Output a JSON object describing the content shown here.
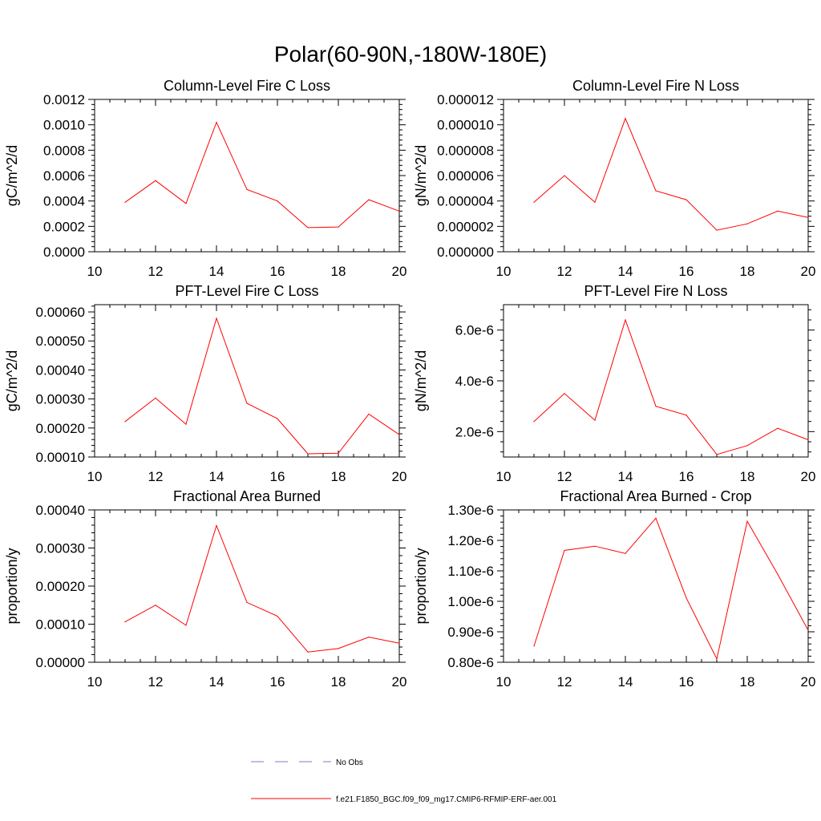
{
  "figure": {
    "title": "Polar(60-90N,-180W-180E)"
  },
  "colors": {
    "series": "#ff0000",
    "obs": "#7b7bc8",
    "axis": "#000000"
  },
  "legend": {
    "obs_label": "No Obs",
    "case_label": "f.e21.F1850_BGC.f09_f09_mg17.CMIP6-RFMIP-ERF-aer.001"
  },
  "chart_data": [
    {
      "type": "line",
      "title": "Column-Level Fire C Loss",
      "xlabel": "",
      "ylabel": "gC/m^2/d",
      "xlim": [
        10,
        20
      ],
      "ylim": [
        0,
        0.0012
      ],
      "x_ticks": [
        10,
        12,
        14,
        16,
        18,
        20
      ],
      "x_tick_labels": [
        "10",
        "12",
        "14",
        "16",
        "18",
        "20"
      ],
      "y_ticks": [
        0,
        0.0002,
        0.0004,
        0.0006,
        0.0008,
        0.001,
        0.0012
      ],
      "y_tick_labels": [
        "0.0000",
        "0.0002",
        "0.0004",
        "0.0006",
        "0.0008",
        "0.0010",
        "0.0012"
      ],
      "series": [
        {
          "name": "f.e21.F1850_BGC.f09_f09_mg17.CMIP6-RFMIP-ERF-aer.001",
          "x": [
            11,
            12,
            13,
            14,
            15,
            16,
            17,
            18,
            19,
            20
          ],
          "values": [
            0.00039,
            0.00056,
            0.00038,
            0.00102,
            0.00049,
            0.0004,
            0.00019,
            0.000195,
            0.00041,
            0.00032
          ]
        }
      ]
    },
    {
      "type": "line",
      "title": "Column-Level Fire N Loss",
      "xlabel": "",
      "ylabel": "gN/m^2/d",
      "xlim": [
        10,
        20
      ],
      "ylim": [
        0,
        1.2e-05
      ],
      "x_ticks": [
        10,
        12,
        14,
        16,
        18,
        20
      ],
      "x_tick_labels": [
        "10",
        "12",
        "14",
        "16",
        "18",
        "20"
      ],
      "y_ticks": [
        0,
        2e-06,
        4e-06,
        6e-06,
        8e-06,
        1e-05,
        1.2e-05
      ],
      "y_tick_labels": [
        "0.000000",
        "0.000002",
        "0.000004",
        "0.000006",
        "0.000008",
        "0.000010",
        "0.000012"
      ],
      "series": [
        {
          "name": "f.e21.F1850_BGC.f09_f09_mg17.CMIP6-RFMIP-ERF-aer.001",
          "x": [
            11,
            12,
            13,
            14,
            15,
            16,
            17,
            18,
            19,
            20
          ],
          "values": [
            3.9e-06,
            6e-06,
            3.9e-06,
            1.05e-05,
            4.8e-06,
            4.1e-06,
            1.7e-06,
            2.2e-06,
            3.2e-06,
            2.7e-06
          ]
        }
      ]
    },
    {
      "type": "line",
      "title": "PFT-Level Fire C Loss",
      "xlabel": "",
      "ylabel": "gC/m^2/d",
      "xlim": [
        10,
        20
      ],
      "ylim": [
        0.0001,
        0.000625
      ],
      "x_ticks": [
        10,
        12,
        14,
        16,
        18,
        20
      ],
      "x_tick_labels": [
        "10",
        "12",
        "14",
        "16",
        "18",
        "20"
      ],
      "y_ticks": [
        0.0001,
        0.0002,
        0.0003,
        0.0004,
        0.0005,
        0.0006
      ],
      "y_tick_labels": [
        "0.00010",
        "0.00020",
        "0.00030",
        "0.00040",
        "0.00050",
        "0.00060"
      ],
      "series": [
        {
          "name": "f.e21.F1850_BGC.f09_f09_mg17.CMIP6-RFMIP-ERF-aer.001",
          "x": [
            11,
            12,
            13,
            14,
            15,
            16,
            17,
            18,
            19,
            20
          ],
          "values": [
            0.000222,
            0.000303,
            0.000213,
            0.000578,
            0.000285,
            0.000232,
            0.000111,
            0.000113,
            0.000248,
            0.000177
          ]
        }
      ]
    },
    {
      "type": "line",
      "title": "PFT-Level Fire N Loss",
      "xlabel": "",
      "ylabel": "gN/m^2/d",
      "xlim": [
        10,
        20
      ],
      "ylim": [
        1e-06,
        7e-06
      ],
      "x_ticks": [
        10,
        12,
        14,
        16,
        18,
        20
      ],
      "x_tick_labels": [
        "10",
        "12",
        "14",
        "16",
        "18",
        "20"
      ],
      "y_ticks": [
        2e-06,
        4e-06,
        6e-06
      ],
      "y_tick_labels": [
        "2.0e-6",
        "4.0e-6",
        "6.0e-6"
      ],
      "series": [
        {
          "name": "f.e21.F1850_BGC.f09_f09_mg17.CMIP6-RFMIP-ERF-aer.001",
          "x": [
            11,
            12,
            13,
            14,
            15,
            16,
            17,
            18,
            19,
            20
          ],
          "values": [
            2.4e-06,
            3.5e-06,
            2.45e-06,
            6.4e-06,
            3e-06,
            2.65e-06,
            1.1e-06,
            1.45e-06,
            2.13e-06,
            1.68e-06
          ]
        }
      ]
    },
    {
      "type": "line",
      "title": "Fractional Area Burned",
      "xlabel": "",
      "ylabel": "proportion/y",
      "xlim": [
        10,
        20
      ],
      "ylim": [
        0,
        0.0004
      ],
      "x_ticks": [
        10,
        12,
        14,
        16,
        18,
        20
      ],
      "x_tick_labels": [
        "10",
        "12",
        "14",
        "16",
        "18",
        "20"
      ],
      "y_ticks": [
        0,
        0.0001,
        0.0002,
        0.0003,
        0.0004
      ],
      "y_tick_labels": [
        "0.00000",
        "0.00010",
        "0.00020",
        "0.00030",
        "0.00040"
      ],
      "series": [
        {
          "name": "f.e21.F1850_BGC.f09_f09_mg17.CMIP6-RFMIP-ERF-aer.001",
          "x": [
            11,
            12,
            13,
            14,
            15,
            16,
            17,
            18,
            19,
            20
          ],
          "values": [
            0.000106,
            0.00015,
            9.7e-05,
            0.000359,
            0.000157,
            0.000121,
            2.7e-05,
            3.6e-05,
            6.6e-05,
            5e-05
          ]
        }
      ]
    },
    {
      "type": "line",
      "title": "Fractional Area Burned - Crop",
      "xlabel": "",
      "ylabel": "proportion/y",
      "xlim": [
        10,
        20
      ],
      "ylim": [
        8e-07,
        1.3e-06
      ],
      "x_ticks": [
        10,
        12,
        14,
        16,
        18,
        20
      ],
      "x_tick_labels": [
        "10",
        "12",
        "14",
        "16",
        "18",
        "20"
      ],
      "y_ticks": [
        8e-07,
        9e-07,
        1e-06,
        1.1e-06,
        1.2e-06,
        1.3e-06
      ],
      "y_tick_labels": [
        "0.80e-6",
        "0.90e-6",
        "1.00e-6",
        "1.10e-6",
        "1.20e-6",
        "1.30e-6"
      ],
      "series": [
        {
          "name": "f.e21.F1850_BGC.f09_f09_mg17.CMIP6-RFMIP-ERF-aer.001",
          "x": [
            11,
            12,
            13,
            14,
            15,
            16,
            17,
            18,
            19,
            20
          ],
          "values": [
            8.53e-07,
            1.167e-06,
            1.181e-06,
            1.157e-06,
            1.273e-06,
            1.011e-06,
            8.11e-07,
            1.263e-06,
            1.089e-06,
            9.05e-07
          ]
        }
      ]
    }
  ]
}
